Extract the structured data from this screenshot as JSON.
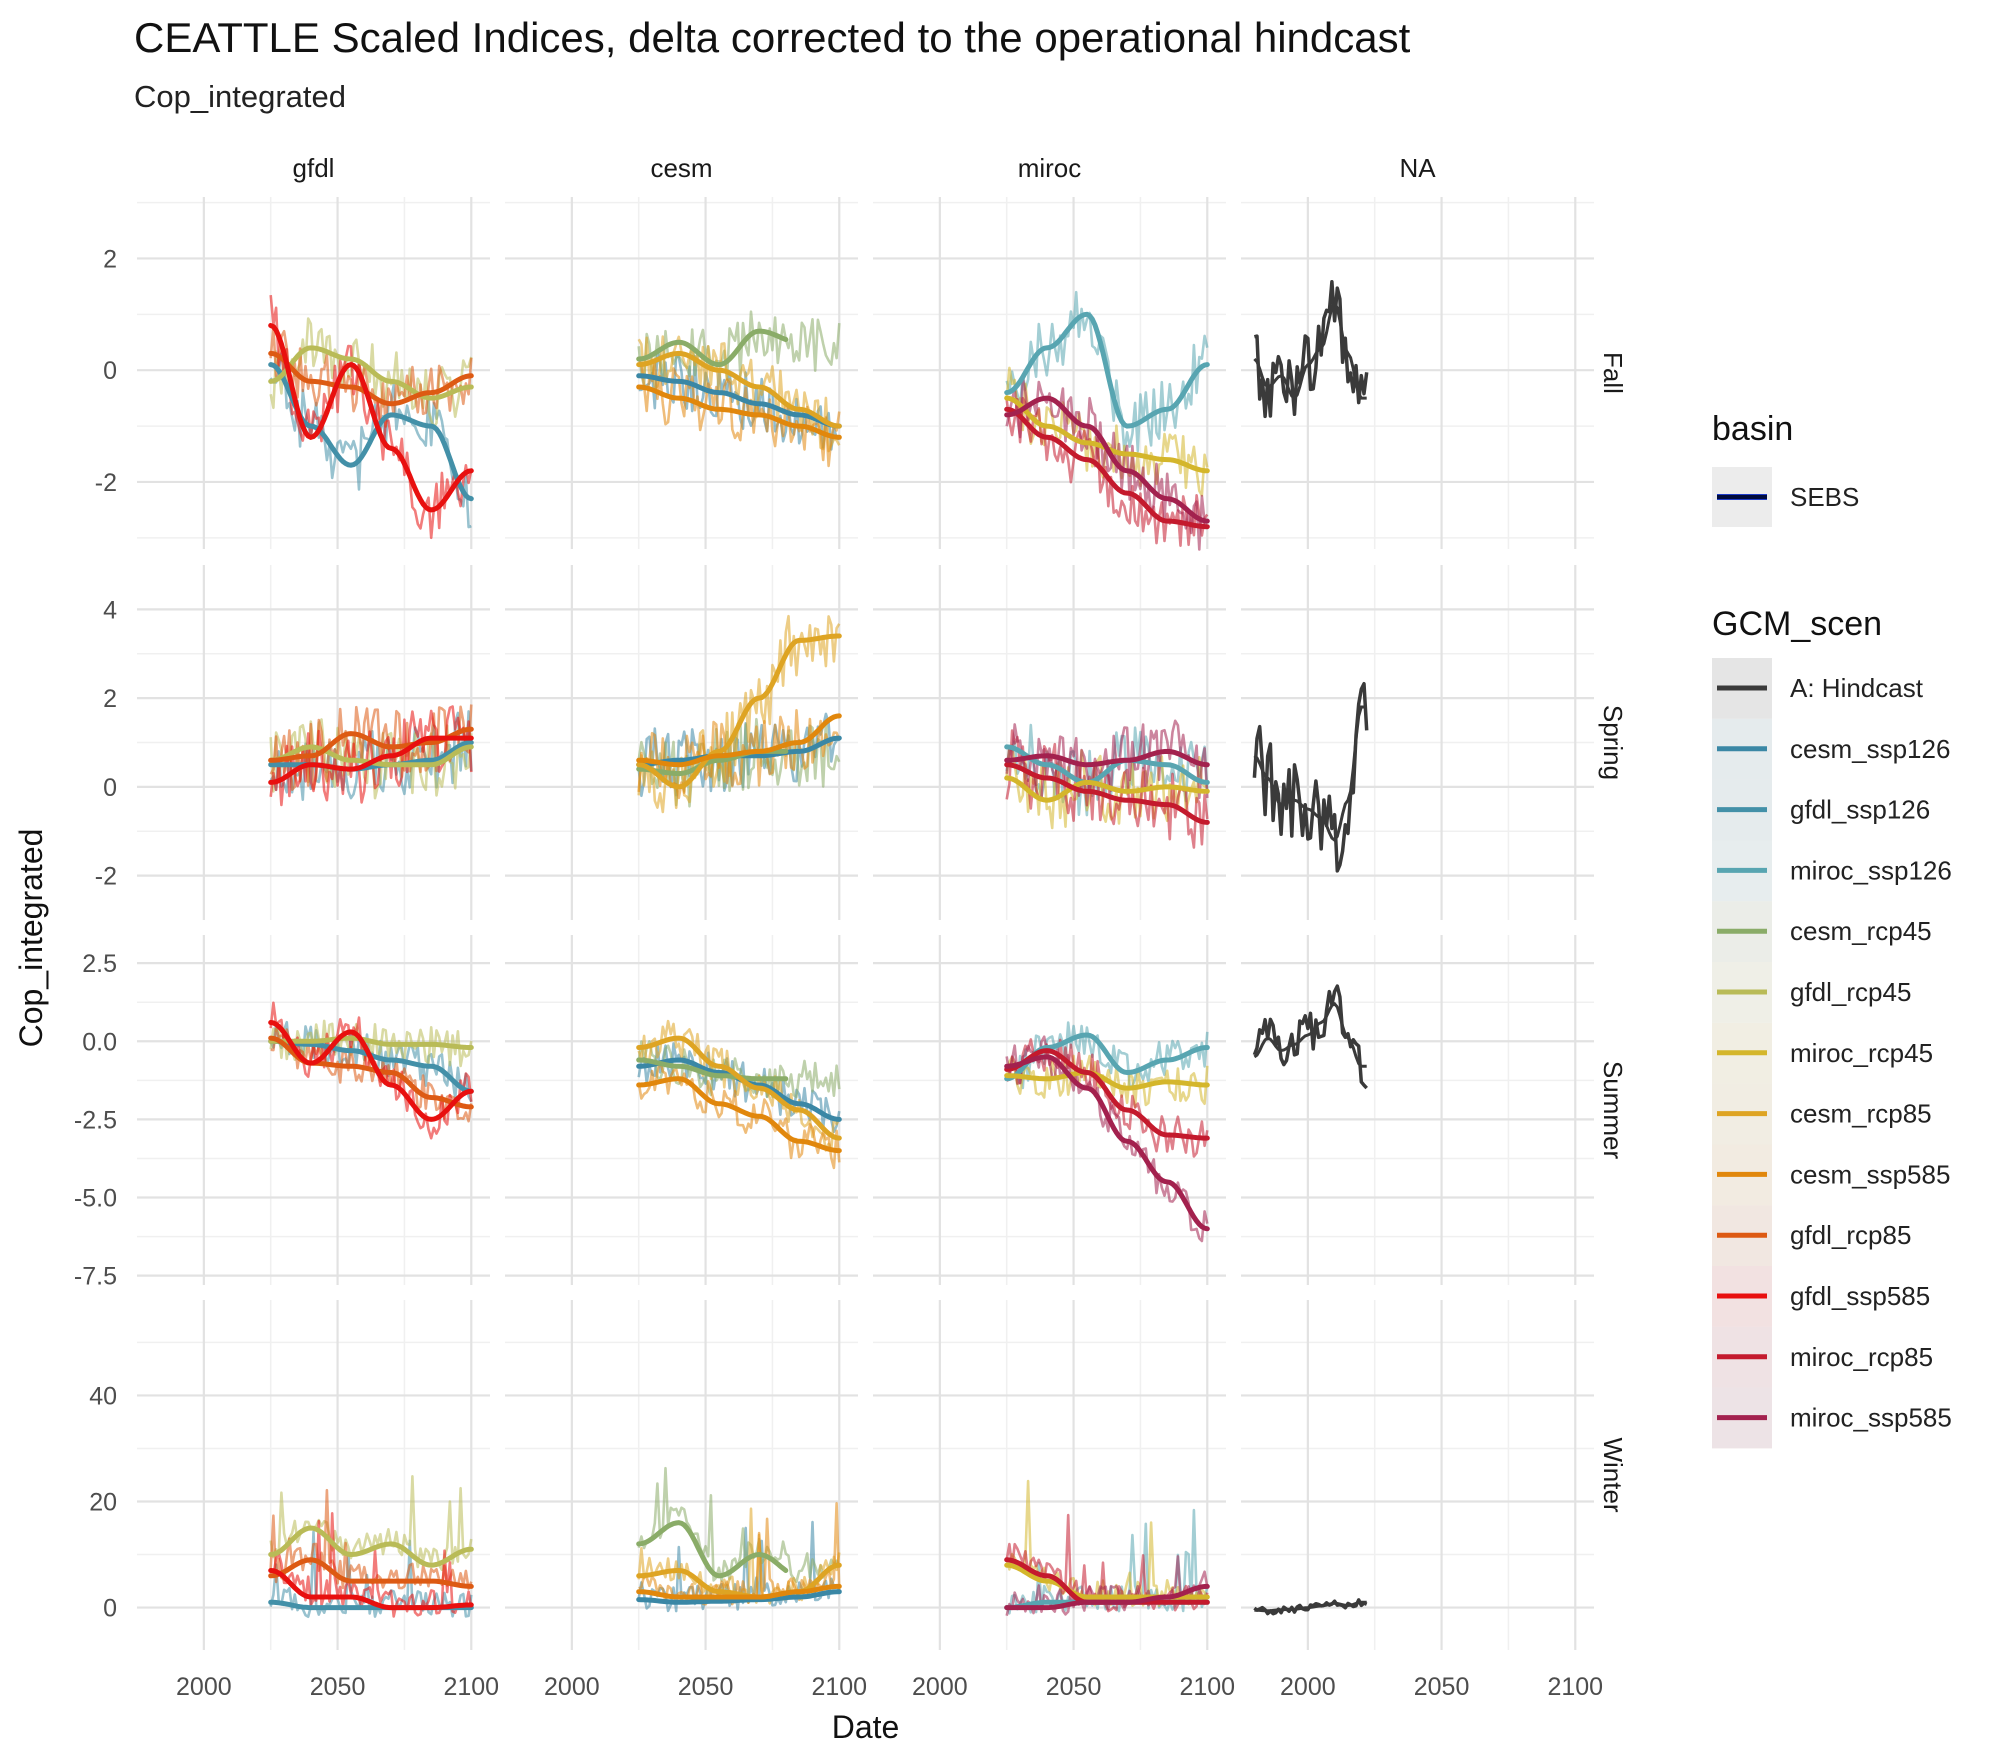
{
  "title": "CEATTLE Scaled Indices, delta corrected to the operational hindcast",
  "subtitle": "Cop_integrated",
  "chart_data": {
    "type": "line",
    "xlabel": "Date",
    "ylabel": "Cop_integrated",
    "columns": [
      "gfdl",
      "cesm",
      "miroc",
      "NA"
    ],
    "rows": [
      "Fall",
      "Spring",
      "Summer",
      "Winter"
    ],
    "x_ticks": [
      "2000",
      "2050",
      "2100"
    ],
    "x_tick_values": [
      2000,
      2050,
      2100
    ],
    "xlim": [
      1975,
      2107
    ],
    "row_scales": [
      {
        "row": "Fall",
        "ylim": [
          -3.2,
          3.1
        ],
        "ticks": [
          -2,
          0,
          2
        ],
        "tick_labels": [
          "-2",
          "0",
          "2"
        ]
      },
      {
        "row": "Spring",
        "ylim": [
          -3.0,
          5.0
        ],
        "ticks": [
          -2,
          0,
          2,
          4
        ],
        "tick_labels": [
          "-2",
          "0",
          "2",
          "4"
        ]
      },
      {
        "row": "Summer",
        "ylim": [
          -7.8,
          3.4
        ],
        "ticks": [
          -7.5,
          -5.0,
          -2.5,
          0.0,
          2.5
        ],
        "tick_labels": [
          "-7.5",
          "-5.0",
          "-2.5",
          "0.0",
          "2.5"
        ]
      },
      {
        "row": "Winter",
        "ylim": [
          -8,
          58
        ],
        "ticks": [
          0,
          20,
          40
        ],
        "tick_labels": [
          "0",
          "20",
          "40"
        ]
      }
    ],
    "smooth_knots_x": [
      2025,
      2040,
      2055,
      2070,
      2085,
      2100
    ],
    "hindcast_x": [
      1980,
      1985,
      1990,
      1995,
      2000,
      2005,
      2010,
      2015,
      2020
    ],
    "hindcast": {
      "Fall": [
        0.2,
        -0.3,
        -0.1,
        -0.5,
        0.1,
        0.4,
        1.2,
        0.3,
        -0.5
      ],
      "Spring": [
        0.7,
        0.2,
        -0.4,
        -0.3,
        -0.5,
        -0.7,
        -1.2,
        -0.3,
        1.8
      ],
      "Summer": [
        -0.5,
        0.1,
        -0.3,
        -0.1,
        0.2,
        0.6,
        1.2,
        0.1,
        -0.8
      ],
      "Winter": [
        -0.5,
        -0.6,
        -0.4,
        -0.3,
        0.0,
        0.3,
        0.8,
        0.4,
        1.0
      ]
    },
    "series": [
      {
        "name": "cesm_ssp126",
        "color": "#3a87a5",
        "column": "cesm",
        "smooth": {
          "Fall": [
            -0.1,
            -0.2,
            -0.4,
            -0.6,
            -0.8,
            -1.0
          ],
          "Spring": [
            0.5,
            0.6,
            0.7,
            0.7,
            0.8,
            1.1
          ],
          "Summer": [
            -0.8,
            -0.6,
            -1.0,
            -1.4,
            -2.0,
            -2.5
          ],
          "Winter": [
            1.5,
            1.0,
            1.2,
            1.5,
            2.0,
            3.0
          ]
        }
      },
      {
        "name": "cesm_rcp45",
        "color": "#8aac68",
        "column": "cesm",
        "end": 2080,
        "smooth": {
          "Fall": [
            0.2,
            0.5,
            0.1,
            0.7,
            0.5,
            0.5
          ],
          "Spring": [
            0.4,
            0.3,
            0.6,
            0.8,
            0.8,
            0.8
          ],
          "Summer": [
            -0.6,
            -0.8,
            -1.1,
            -1.2,
            -1.2,
            -1.2
          ],
          "Winter": [
            12,
            16,
            6,
            10,
            6,
            6
          ]
        }
      },
      {
        "name": "cesm_rcp85",
        "color": "#dea423",
        "column": "cesm",
        "smooth": {
          "Fall": [
            0.1,
            0.3,
            0.0,
            -0.3,
            -0.7,
            -1.0
          ],
          "Spring": [
            0.5,
            0.0,
            0.8,
            2.0,
            3.3,
            3.4
          ],
          "Summer": [
            -0.2,
            0.1,
            -0.8,
            -1.5,
            -2.2,
            -3.1
          ],
          "Winter": [
            6,
            7,
            3,
            2,
            3,
            8
          ]
        }
      },
      {
        "name": "cesm_ssp585",
        "color": "#e1870c",
        "column": "cesm",
        "smooth": {
          "Fall": [
            -0.3,
            -0.5,
            -0.7,
            -0.8,
            -1.0,
            -1.2
          ],
          "Spring": [
            0.6,
            0.5,
            0.7,
            0.8,
            1.0,
            1.6
          ],
          "Summer": [
            -1.4,
            -1.2,
            -2.0,
            -2.4,
            -3.2,
            -3.5
          ],
          "Winter": [
            3,
            2,
            2,
            2,
            3,
            4
          ]
        }
      },
      {
        "name": "gfdl_ssp126",
        "color": "#4390a8",
        "column": "gfdl",
        "smooth": {
          "Fall": [
            0.1,
            -1.0,
            -1.7,
            -0.8,
            -1.0,
            -2.3
          ],
          "Spring": [
            0.5,
            0.5,
            0.4,
            0.5,
            0.6,
            1.0
          ],
          "Summer": [
            0.0,
            -0.1,
            -0.3,
            -0.6,
            -0.8,
            -1.6
          ],
          "Winter": [
            1,
            0,
            0,
            0,
            0,
            0
          ]
        }
      },
      {
        "name": "gfdl_rcp45",
        "color": "#b9bb57",
        "column": "gfdl",
        "smooth": {
          "Fall": [
            -0.2,
            0.4,
            0.2,
            -0.2,
            -0.5,
            -0.3
          ],
          "Spring": [
            0.6,
            0.9,
            0.6,
            0.5,
            0.5,
            0.9
          ],
          "Summer": [
            0.0,
            0.0,
            0.1,
            -0.1,
            -0.1,
            -0.2
          ],
          "Winter": [
            10,
            15,
            10,
            12,
            8,
            11
          ]
        }
      },
      {
        "name": "gfdl_rcp85",
        "color": "#dd5a13",
        "column": "gfdl",
        "smooth": {
          "Fall": [
            0.3,
            -0.2,
            -0.3,
            -0.6,
            -0.4,
            -0.1
          ],
          "Spring": [
            0.6,
            0.7,
            1.2,
            0.9,
            1.0,
            1.3
          ],
          "Summer": [
            0.1,
            -0.7,
            -0.8,
            -1.0,
            -1.8,
            -2.1
          ],
          "Winter": [
            6,
            9,
            5,
            5,
            5,
            4
          ]
        }
      },
      {
        "name": "gfdl_ssp585",
        "color": "#e8100f",
        "column": "gfdl",
        "smooth": {
          "Fall": [
            0.8,
            -1.2,
            0.1,
            -1.4,
            -2.5,
            -1.8
          ],
          "Spring": [
            0.1,
            0.5,
            0.4,
            0.7,
            1.1,
            1.1
          ],
          "Summer": [
            0.6,
            -0.7,
            0.3,
            -1.4,
            -2.5,
            -1.6
          ],
          "Winter": [
            7,
            2,
            2,
            0,
            0,
            0.5
          ]
        }
      },
      {
        "name": "miroc_ssp126",
        "color": "#58a5b1",
        "column": "miroc",
        "smooth": {
          "Fall": [
            -0.4,
            0.4,
            1.0,
            -1.0,
            -0.7,
            0.1
          ],
          "Spring": [
            0.9,
            0.5,
            0.1,
            0.6,
            0.5,
            0.1
          ],
          "Summer": [
            -1.2,
            -0.2,
            0.2,
            -1.0,
            -0.6,
            -0.2
          ],
          "Winter": [
            0,
            1,
            1,
            1,
            1,
            1
          ]
        }
      },
      {
        "name": "miroc_rcp45",
        "color": "#d4b62b",
        "column": "miroc",
        "smooth": {
          "Fall": [
            -0.5,
            -1.0,
            -1.3,
            -1.5,
            -1.6,
            -1.8
          ],
          "Spring": [
            0.2,
            -0.3,
            0.1,
            -0.1,
            0.0,
            -0.1
          ],
          "Summer": [
            -1.1,
            -1.2,
            -1.0,
            -1.5,
            -1.3,
            -1.4
          ],
          "Winter": [
            8,
            5,
            2,
            2,
            2,
            2
          ]
        }
      },
      {
        "name": "miroc_rcp85",
        "color": "#c41a2d",
        "column": "miroc",
        "smooth": {
          "Fall": [
            -0.7,
            -1.2,
            -1.6,
            -2.2,
            -2.7,
            -2.8
          ],
          "Spring": [
            0.5,
            0.2,
            -0.1,
            -0.3,
            -0.4,
            -0.8
          ],
          "Summer": [
            -0.9,
            -0.3,
            -1.0,
            -2.2,
            -3.0,
            -3.1
          ],
          "Winter": [
            9,
            6,
            1,
            1,
            1,
            1
          ]
        }
      },
      {
        "name": "miroc_ssp585",
        "color": "#a3214e",
        "column": "miroc",
        "smooth": {
          "Fall": [
            -0.8,
            -0.5,
            -1.0,
            -1.8,
            -2.3,
            -2.7
          ],
          "Spring": [
            0.6,
            0.7,
            0.5,
            0.6,
            0.8,
            0.5
          ],
          "Summer": [
            -0.8,
            -0.5,
            -1.5,
            -3.2,
            -4.5,
            -6.0
          ],
          "Winter": [
            0,
            0,
            1,
            1,
            2,
            4
          ]
        }
      }
    ],
    "legend": [
      {
        "title": "basin",
        "placement": "right",
        "entries": [
          {
            "label": "SEBS",
            "color": "#000b3d"
          }
        ]
      },
      {
        "title": "GCM_scen",
        "placement": "right",
        "entries": [
          {
            "label": "A: Hindcast",
            "color": "#3a3a3a"
          },
          {
            "label": "cesm_ssp126",
            "color": "#3a87a5"
          },
          {
            "label": "gfdl_ssp126",
            "color": "#4390a8"
          },
          {
            "label": "miroc_ssp126",
            "color": "#58a5b1"
          },
          {
            "label": "cesm_rcp45",
            "color": "#8aac68"
          },
          {
            "label": "gfdl_rcp45",
            "color": "#b9bb57"
          },
          {
            "label": "miroc_rcp45",
            "color": "#d4b62b"
          },
          {
            "label": "cesm_rcp85",
            "color": "#dea423"
          },
          {
            "label": "cesm_ssp585",
            "color": "#e1870c"
          },
          {
            "label": "gfdl_rcp85",
            "color": "#dd5a13"
          },
          {
            "label": "gfdl_ssp585",
            "color": "#e8100f"
          },
          {
            "label": "miroc_rcp85",
            "color": "#c41a2d"
          },
          {
            "label": "miroc_ssp585",
            "color": "#a3214e"
          }
        ]
      }
    ],
    "grid": true
  }
}
